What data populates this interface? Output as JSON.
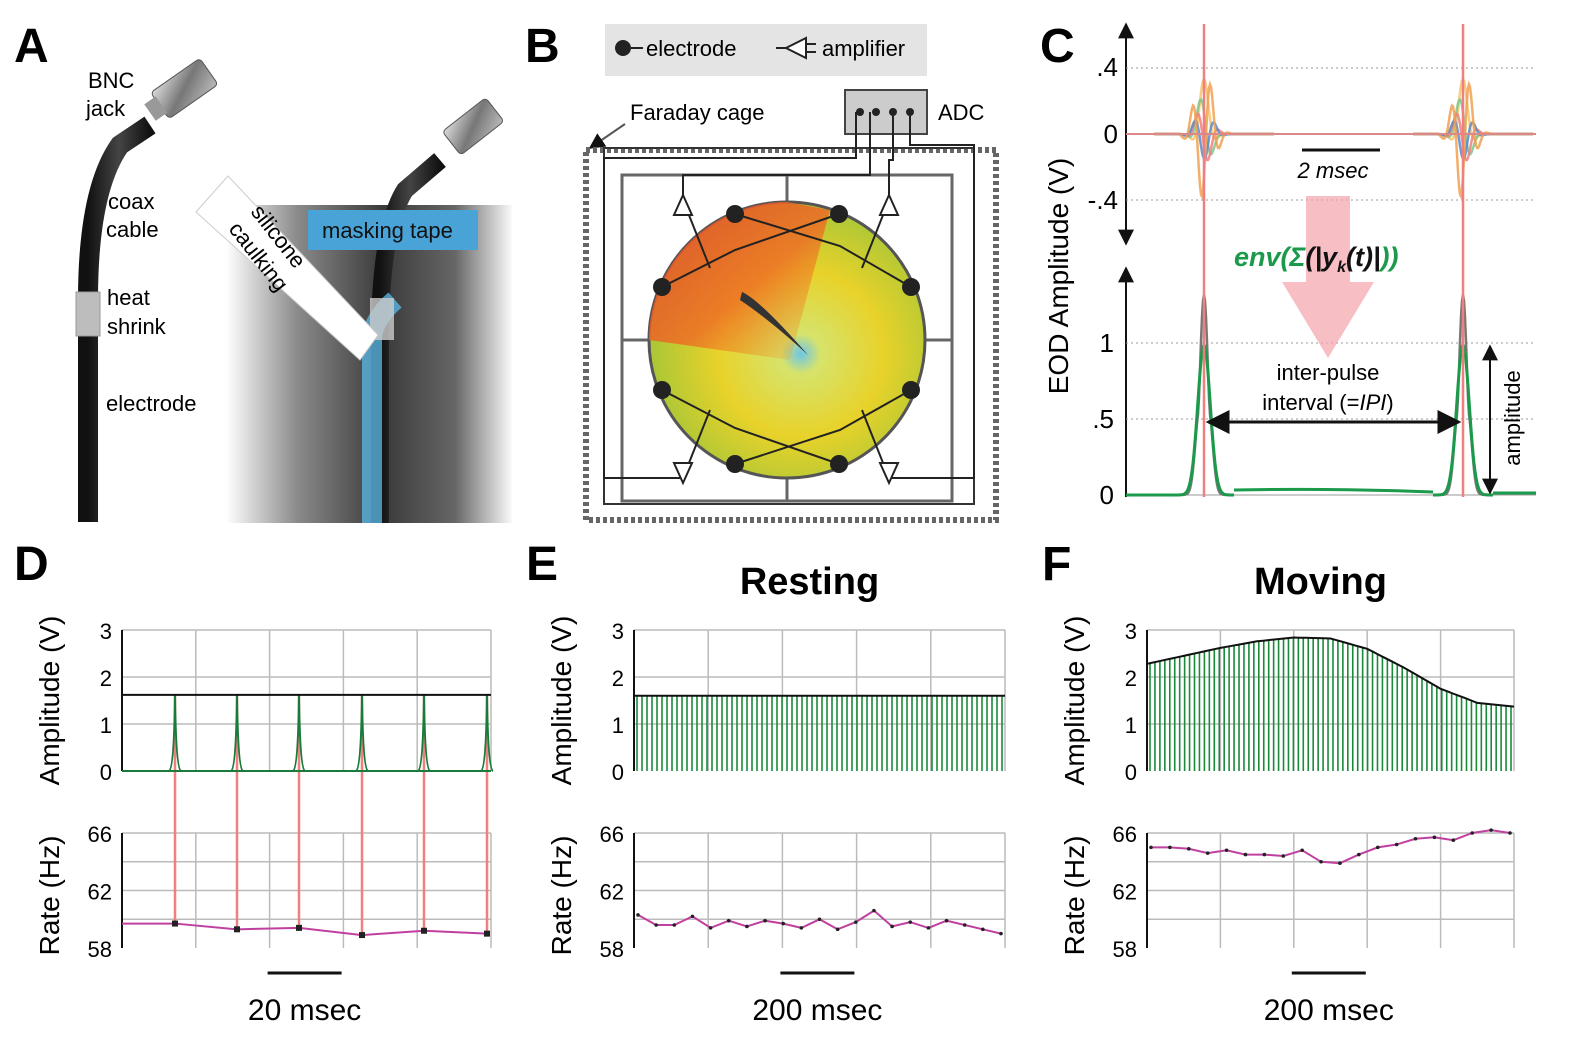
{
  "panels": {
    "A": {
      "letter": "A",
      "labels": {
        "bnc1": "BNC",
        "bnc2": "jack",
        "coax1": "coax",
        "coax2": "cable",
        "heat1": "heat",
        "heat2": "shrink",
        "electrode": "electrode",
        "silicone1": "silicone",
        "silicone2": "caulking",
        "masking": "masking tape"
      }
    },
    "B": {
      "letter": "B",
      "legend": {
        "electrode": "electrode",
        "amplifier": "amplifier"
      },
      "faraday": "Faraday cage",
      "adc": "ADC"
    },
    "C": {
      "letter": "C",
      "ylabel": "EOD Amplitude (V)",
      "top_ticks": [
        ".4",
        "0",
        "-.4"
      ],
      "bottom_ticks": [
        "1",
        ".5",
        "0"
      ],
      "scalebar": "2 msec",
      "env_prefix": "env(",
      "env_sigma": "Σ",
      "env_open": "(|",
      "env_y": "y",
      "env_k": "k",
      "env_t": "(t)|",
      "env_close": "))",
      "ipi1": "inter-pulse",
      "ipi2a": "interval (=",
      "ipi2b": "IPI",
      "ipi2c": ")",
      "amplitude": "amplitude",
      "colors": {
        "green": "#1a9a4a",
        "pink": "#f4a3ab",
        "red": "#f08080"
      }
    },
    "D": {
      "letter": "D",
      "title": "",
      "amp_ylabel": "Amplitude (V)",
      "rate_ylabel": "Rate (Hz)",
      "amp_ticks": [
        "3",
        "2",
        "1",
        "0"
      ],
      "rate_ticks": [
        "66",
        "62",
        "58"
      ],
      "scalebar": "20 msec"
    },
    "E": {
      "letter": "E",
      "title": "Resting",
      "amp_ylabel": "Amplitude (V)",
      "rate_ylabel": "Rate (Hz)",
      "amp_ticks": [
        "3",
        "2",
        "1",
        "0"
      ],
      "rate_ticks": [
        "66",
        "62",
        "58"
      ],
      "scalebar": "200 msec"
    },
    "F": {
      "letter": "F",
      "title": "Moving",
      "amp_ylabel": "Amplitude (V)",
      "rate_ylabel": "Rate (Hz)",
      "amp_ticks": [
        "3",
        "2",
        "1",
        "0"
      ],
      "rate_ticks": [
        "66",
        "62",
        "58"
      ],
      "scalebar": "200 msec"
    }
  },
  "chart_data": [
    {
      "type": "line",
      "panel": "D",
      "title": "",
      "ylabel": "Amplitude (V)",
      "ylim": [
        0,
        3
      ],
      "series": [
        {
          "name": "envelope",
          "values": [
            1.62,
            1.62
          ]
        },
        {
          "name": "pulse_peaks",
          "values": [
            1.62,
            1.62,
            1.62,
            1.62,
            1.62,
            1.62
          ]
        }
      ]
    },
    {
      "type": "line",
      "panel": "D",
      "ylabel": "Rate (Hz)",
      "ylim": [
        58,
        66
      ],
      "series": [
        {
          "name": "rate",
          "values": [
            59.7,
            59.3,
            59.4,
            58.9,
            59.2,
            59.0
          ]
        }
      ]
    },
    {
      "type": "line",
      "panel": "E",
      "title": "Resting",
      "ylabel": "Amplitude (V)",
      "ylim": [
        0,
        3
      ],
      "series": [
        {
          "name": "envelope",
          "values": [
            1.6,
            1.6,
            1.6,
            1.6,
            1.6,
            1.6
          ]
        }
      ]
    },
    {
      "type": "line",
      "panel": "E",
      "ylabel": "Rate (Hz)",
      "ylim": [
        58,
        66
      ],
      "series": [
        {
          "name": "rate",
          "values": [
            60.3,
            59.6,
            59.6,
            60.2,
            59.4,
            59.9,
            59.5,
            59.9,
            59.7,
            59.4,
            60.0,
            59.3,
            59.8,
            60.6,
            59.5,
            59.8,
            59.4,
            59.9,
            59.6,
            59.3,
            59.0
          ]
        }
      ]
    },
    {
      "type": "line",
      "panel": "F",
      "title": "Moving",
      "ylabel": "Amplitude (V)",
      "ylim": [
        0,
        3
      ],
      "series": [
        {
          "name": "envelope",
          "values": [
            2.28,
            2.45,
            2.62,
            2.76,
            2.84,
            2.82,
            2.6,
            2.2,
            1.75,
            1.45,
            1.37
          ]
        }
      ]
    },
    {
      "type": "line",
      "panel": "F",
      "ylabel": "Rate (Hz)",
      "ylim": [
        58,
        66
      ],
      "series": [
        {
          "name": "rate",
          "values": [
            65.0,
            65.0,
            64.9,
            64.6,
            64.8,
            64.5,
            64.5,
            64.4,
            64.8,
            64.0,
            63.9,
            64.5,
            65.0,
            65.2,
            65.6,
            65.7,
            65.5,
            66.0,
            66.2,
            66.0
          ]
        }
      ]
    }
  ]
}
